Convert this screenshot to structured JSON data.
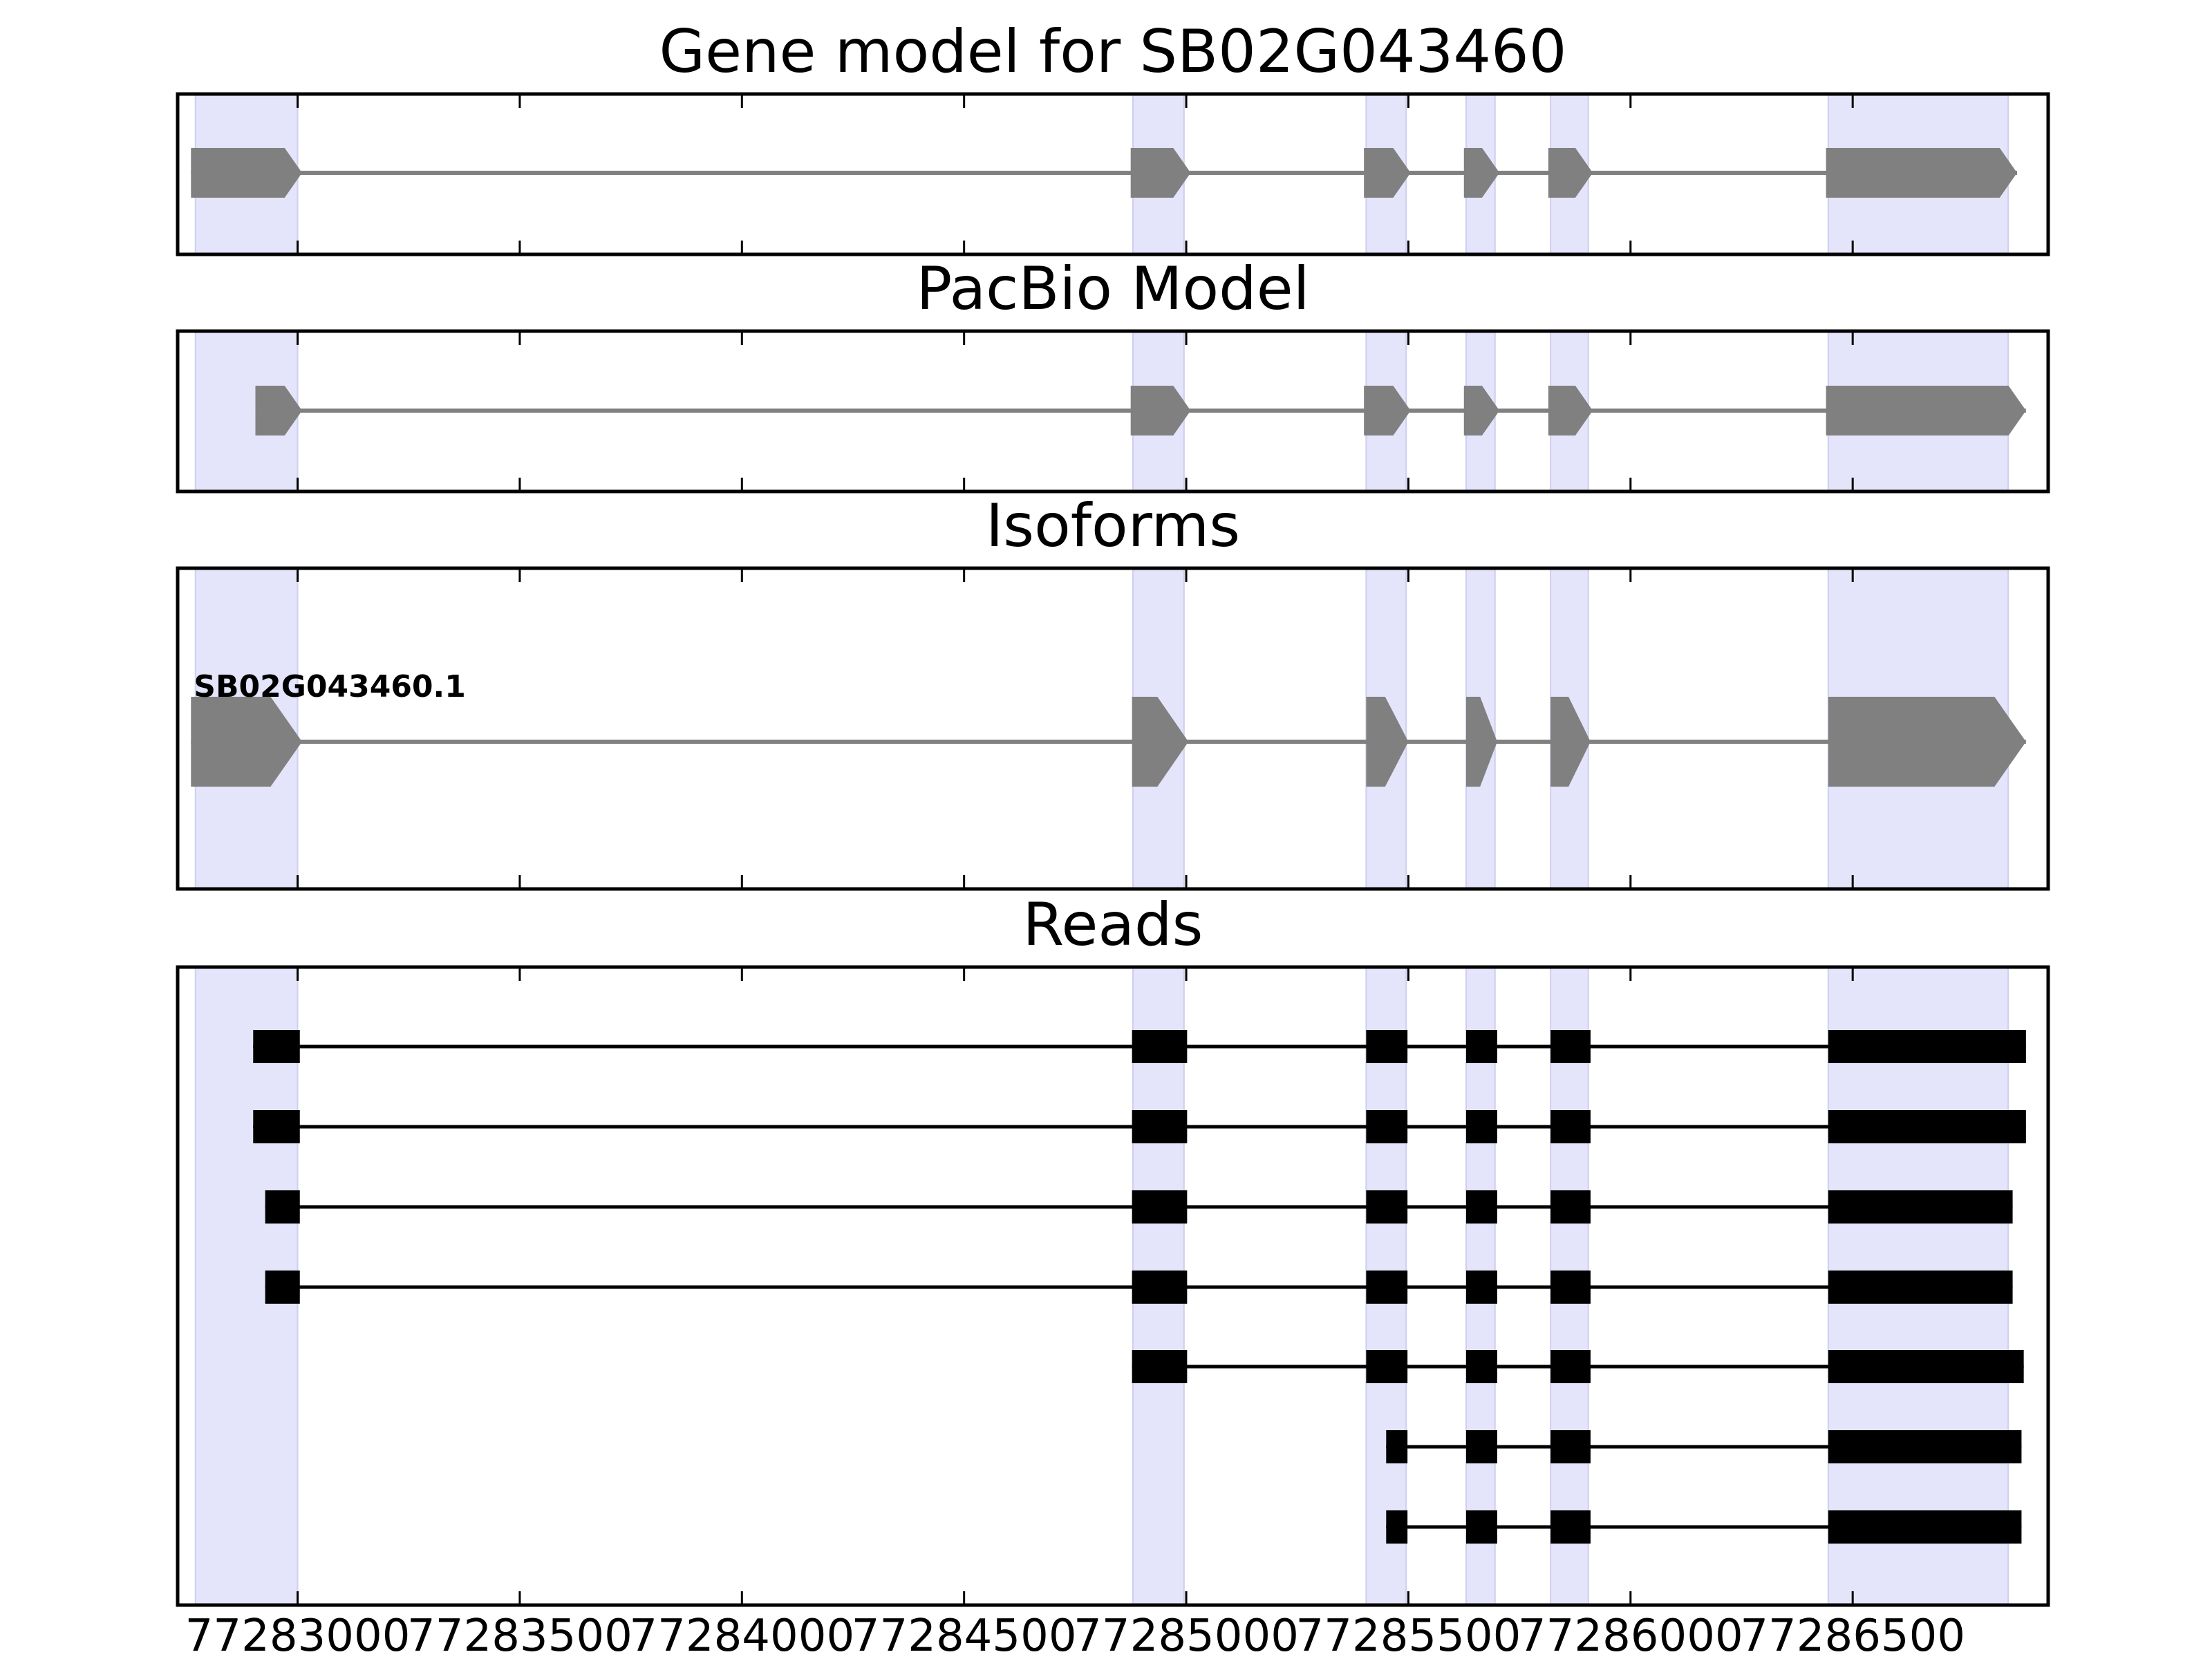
{
  "chart_data": {
    "type": "gene-model",
    "xlim": [
      77282730,
      77286940
    ],
    "x_ticks": [
      77283000,
      77283500,
      77284000,
      77284500,
      77285000,
      77285500,
      77286000,
      77286500
    ],
    "x_tick_labels": [
      "77283000",
      "77283500",
      "77284000",
      "77284500",
      "77285000",
      "77285500",
      "77286000",
      "77286500"
    ],
    "highlight_color": "#e4e4fa",
    "exon_regions": [
      [
        77282770,
        77283000
      ],
      [
        77284880,
        77284995
      ],
      [
        77285405,
        77285495
      ],
      [
        77285630,
        77285695
      ],
      [
        77285820,
        77285905
      ],
      [
        77286445,
        77286850
      ]
    ],
    "panels": [
      {
        "title": "Gene model for SB02G043460",
        "color": "#808080",
        "style": "arrow",
        "features": [
          {
            "label": "",
            "exons": [
              [
                77282760,
                77283010
              ],
              [
                77284875,
                77285010
              ],
              [
                77285400,
                77285505
              ],
              [
                77285625,
                77285705
              ],
              [
                77285815,
                77285915
              ],
              [
                77286440,
                77286870
              ]
            ]
          }
        ]
      },
      {
        "title": "PacBio Model",
        "color": "#808080",
        "style": "arrow",
        "features": [
          {
            "label": "",
            "exons": [
              [
                77282905,
                77283010
              ],
              [
                77284875,
                77285010
              ],
              [
                77285400,
                77285505
              ],
              [
                77285625,
                77285705
              ],
              [
                77285815,
                77285915
              ],
              [
                77286440,
                77286890
              ]
            ]
          }
        ]
      },
      {
        "title": "Isoforms",
        "color": "#808080",
        "style": "arrow-tall",
        "features": [
          {
            "label": "SB02G043460.1",
            "exons": [
              [
                77282760,
                77283010
              ],
              [
                77284878,
                77285005
              ],
              [
                77285405,
                77285500
              ],
              [
                77285630,
                77285700
              ],
              [
                77285820,
                77285910
              ],
              [
                77286445,
                77286890
              ]
            ]
          }
        ]
      },
      {
        "title": "Reads",
        "color": "#000000",
        "style": "block",
        "features": [
          {
            "label": "",
            "exons": [
              [
                77282900,
                77283005
              ],
              [
                77284878,
                77285002
              ],
              [
                77285405,
                77285498
              ],
              [
                77285630,
                77285700
              ],
              [
                77285820,
                77285910
              ],
              [
                77286445,
                77286890
              ]
            ]
          },
          {
            "label": "",
            "exons": [
              [
                77282900,
                77283005
              ],
              [
                77284878,
                77285002
              ],
              [
                77285405,
                77285498
              ],
              [
                77285630,
                77285700
              ],
              [
                77285820,
                77285910
              ],
              [
                77286445,
                77286890
              ]
            ]
          },
          {
            "label": "",
            "exons": [
              [
                77282927,
                77283005
              ],
              [
                77284878,
                77285002
              ],
              [
                77285405,
                77285498
              ],
              [
                77285630,
                77285700
              ],
              [
                77285820,
                77285910
              ],
              [
                77286445,
                77286860
              ]
            ]
          },
          {
            "label": "",
            "exons": [
              [
                77282927,
                77283005
              ],
              [
                77284878,
                77285002
              ],
              [
                77285405,
                77285498
              ],
              [
                77285630,
                77285700
              ],
              [
                77285820,
                77285910
              ],
              [
                77286445,
                77286860
              ]
            ]
          },
          {
            "label": "",
            "exons": [
              [
                77284878,
                77285002
              ],
              [
                77285405,
                77285498
              ],
              [
                77285630,
                77285700
              ],
              [
                77285820,
                77285910
              ],
              [
                77286445,
                77286885
              ]
            ]
          },
          {
            "label": "",
            "exons": [
              [
                77285450,
                77285498
              ],
              [
                77285630,
                77285700
              ],
              [
                77285820,
                77285910
              ],
              [
                77286445,
                77286880
              ]
            ]
          },
          {
            "label": "",
            "exons": [
              [
                77285450,
                77285498
              ],
              [
                77285630,
                77285700
              ],
              [
                77285820,
                77285910
              ],
              [
                77286445,
                77286880
              ]
            ]
          }
        ]
      }
    ]
  }
}
